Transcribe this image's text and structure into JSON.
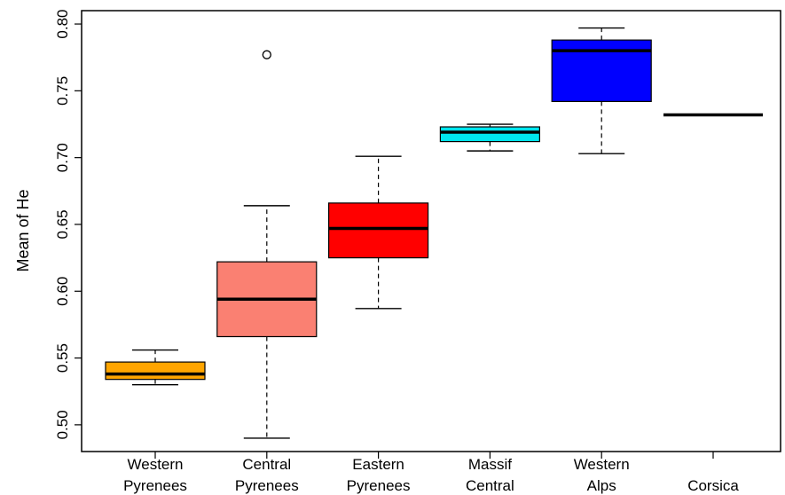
{
  "chart_data": {
    "type": "boxplot",
    "title": "",
    "xlabel": "",
    "ylabel": "Mean of He",
    "ylim": [
      0.48,
      0.81
    ],
    "yticks": [
      0.5,
      0.55,
      0.6,
      0.65,
      0.7,
      0.75,
      0.8
    ],
    "ytick_labels": [
      "0.50",
      "0.55",
      "0.60",
      "0.65",
      "0.70",
      "0.75",
      "0.80"
    ],
    "grid": false,
    "legend": "none",
    "categories": [
      {
        "line1": "Western",
        "line2": "Pyrenees",
        "color": "#FFA500",
        "min": 0.53,
        "q1": 0.534,
        "median": 0.538,
        "q3": 0.547,
        "max": 0.556,
        "outliers": []
      },
      {
        "line1": "Central",
        "line2": "Pyrenees",
        "color": "#FA8072",
        "min": 0.49,
        "q1": 0.566,
        "median": 0.594,
        "q3": 0.622,
        "max": 0.664,
        "outliers": [
          0.777
        ]
      },
      {
        "line1": "Eastern",
        "line2": "Pyrenees",
        "color": "#FF0000",
        "min": 0.587,
        "q1": 0.625,
        "median": 0.647,
        "q3": 0.666,
        "max": 0.701,
        "outliers": []
      },
      {
        "line1": "Massif",
        "line2": "Central",
        "color": "#00E5EE",
        "min": 0.705,
        "q1": 0.712,
        "median": 0.719,
        "q3": 0.723,
        "max": 0.725,
        "outliers": []
      },
      {
        "line1": "Western",
        "line2": "Alps",
        "color": "#0000FF",
        "min": 0.703,
        "q1": 0.742,
        "median": 0.78,
        "q3": 0.788,
        "max": 0.797,
        "outliers": []
      },
      {
        "line1": "Corsica",
        "line2": "",
        "color": "#000000",
        "min": 0.732,
        "q1": 0.732,
        "median": 0.732,
        "q3": 0.732,
        "max": 0.732,
        "outliers": []
      }
    ]
  }
}
